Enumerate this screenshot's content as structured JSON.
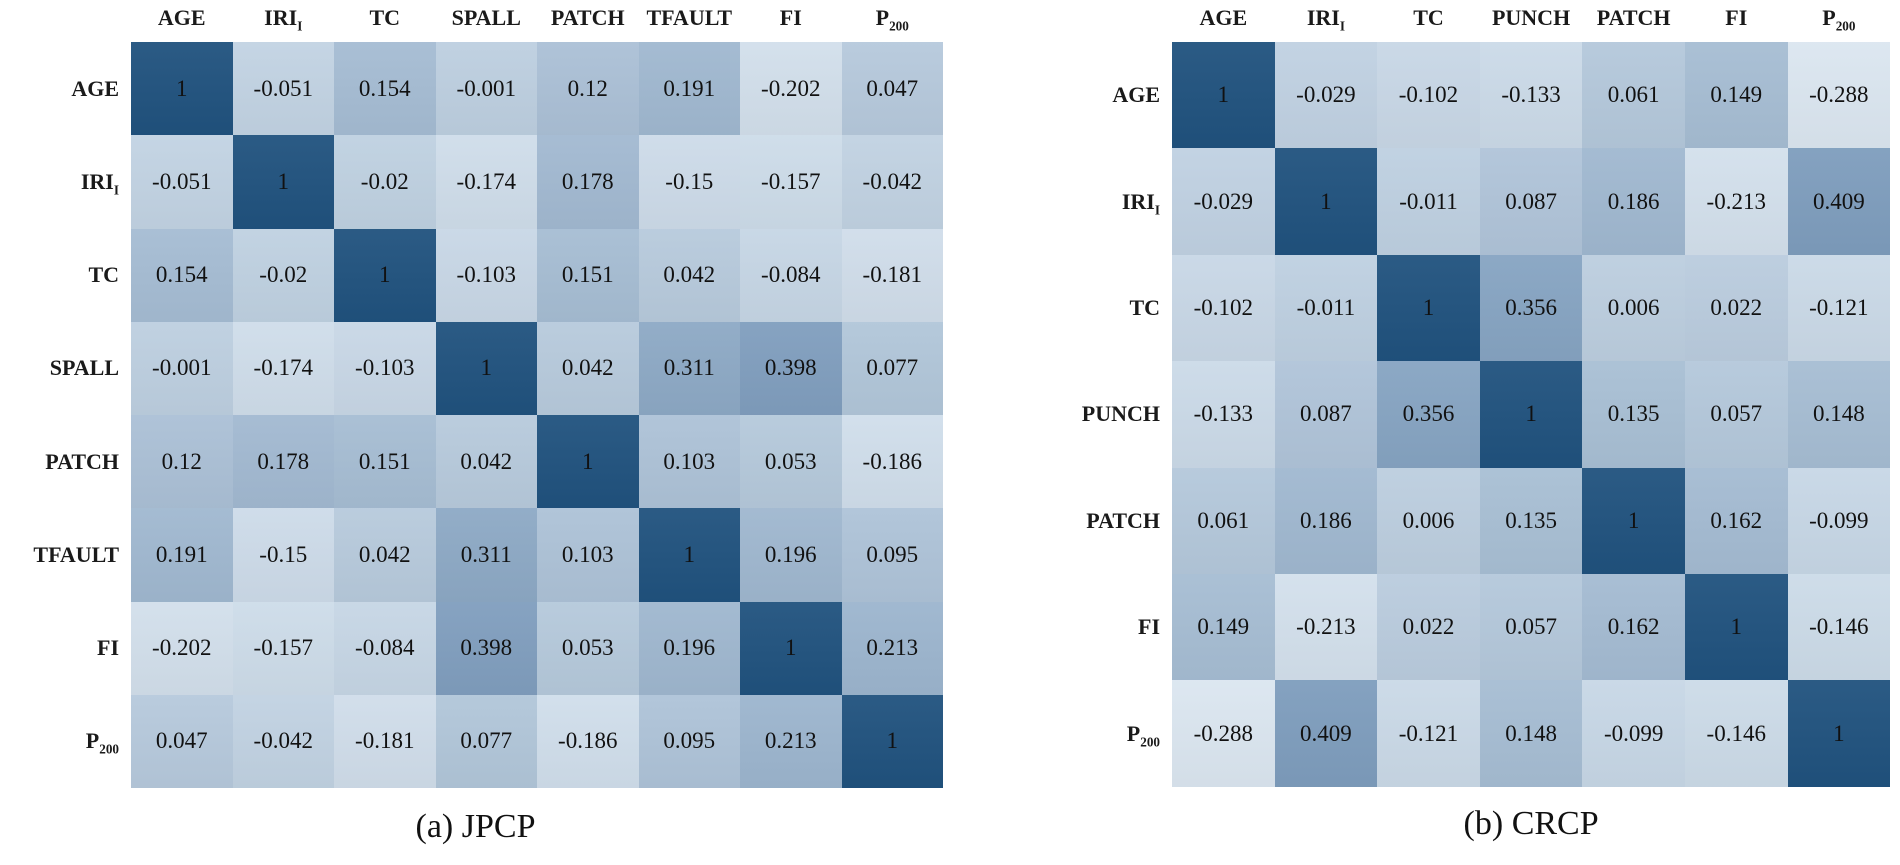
{
  "page": {
    "background": "#ffffff"
  },
  "colormap": {
    "anchors": [
      {
        "value": -0.3,
        "color": "#dce7f1"
      },
      {
        "value": 0.0,
        "color": "#bdcfe0"
      },
      {
        "value": 0.41,
        "color": "#7e9dbd"
      },
      {
        "value": 1.0,
        "color": "#20527e"
      }
    ],
    "cell_text_color": "#111111"
  },
  "chart_data": [
    {
      "type": "heatmap",
      "title": "(a) JPCP",
      "variables": [
        "AGE",
        "IRI_I",
        "TC",
        "SPALL",
        "PATCH",
        "TFAULT",
        "FI",
        "P_200"
      ],
      "matrix": [
        [
          "1",
          "-0.051",
          "0.154",
          "-0.001",
          "0.12",
          "0.191",
          "-0.202",
          "0.047"
        ],
        [
          "-0.051",
          "1",
          "-0.02",
          "-0.174",
          "0.178",
          "-0.15",
          "-0.157",
          "-0.042"
        ],
        [
          "0.154",
          "-0.02",
          "1",
          "-0.103",
          "0.151",
          "0.042",
          "-0.084",
          "-0.181"
        ],
        [
          "-0.001",
          "-0.174",
          "-0.103",
          "1",
          "0.042",
          "0.311",
          "0.398",
          "0.077"
        ],
        [
          "0.12",
          "0.178",
          "0.151",
          "0.042",
          "1",
          "0.103",
          "0.053",
          "-0.186"
        ],
        [
          "0.191",
          "-0.15",
          "0.042",
          "0.311",
          "0.103",
          "1",
          "0.196",
          "0.095"
        ],
        [
          "-0.202",
          "-0.157",
          "-0.084",
          "0.398",
          "0.053",
          "0.196",
          "1",
          "0.213"
        ],
        [
          "0.047",
          "-0.042",
          "-0.181",
          "0.077",
          "-0.186",
          "0.095",
          "0.213",
          "1"
        ]
      ],
      "value_range": [
        -0.202,
        1
      ],
      "legend": "none",
      "grid": "off"
    },
    {
      "type": "heatmap",
      "title": "(b) CRCP",
      "variables": [
        "AGE",
        "IRI_I",
        "TC",
        "PUNCH",
        "PATCH",
        "FI",
        "P_200"
      ],
      "matrix": [
        [
          "1",
          "-0.029",
          "-0.102",
          "-0.133",
          "0.061",
          "0.149",
          "-0.288"
        ],
        [
          "-0.029",
          "1",
          "-0.011",
          "0.087",
          "0.186",
          "-0.213",
          "0.409"
        ],
        [
          "-0.102",
          "-0.011",
          "1",
          "0.356",
          "0.006",
          "0.022",
          "-0.121"
        ],
        [
          "-0.133",
          "0.087",
          "0.356",
          "1",
          "0.135",
          "0.057",
          "0.148"
        ],
        [
          "0.061",
          "0.186",
          "0.006",
          "0.135",
          "1",
          "0.162",
          "-0.099"
        ],
        [
          "0.149",
          "-0.213",
          "0.022",
          "0.057",
          "0.162",
          "1",
          "-0.146"
        ],
        [
          "-0.288",
          "0.409",
          "-0.121",
          "0.148",
          "-0.099",
          "-0.146",
          "1"
        ]
      ],
      "value_range": [
        -0.288,
        1
      ],
      "legend": "none",
      "grid": "off"
    }
  ]
}
